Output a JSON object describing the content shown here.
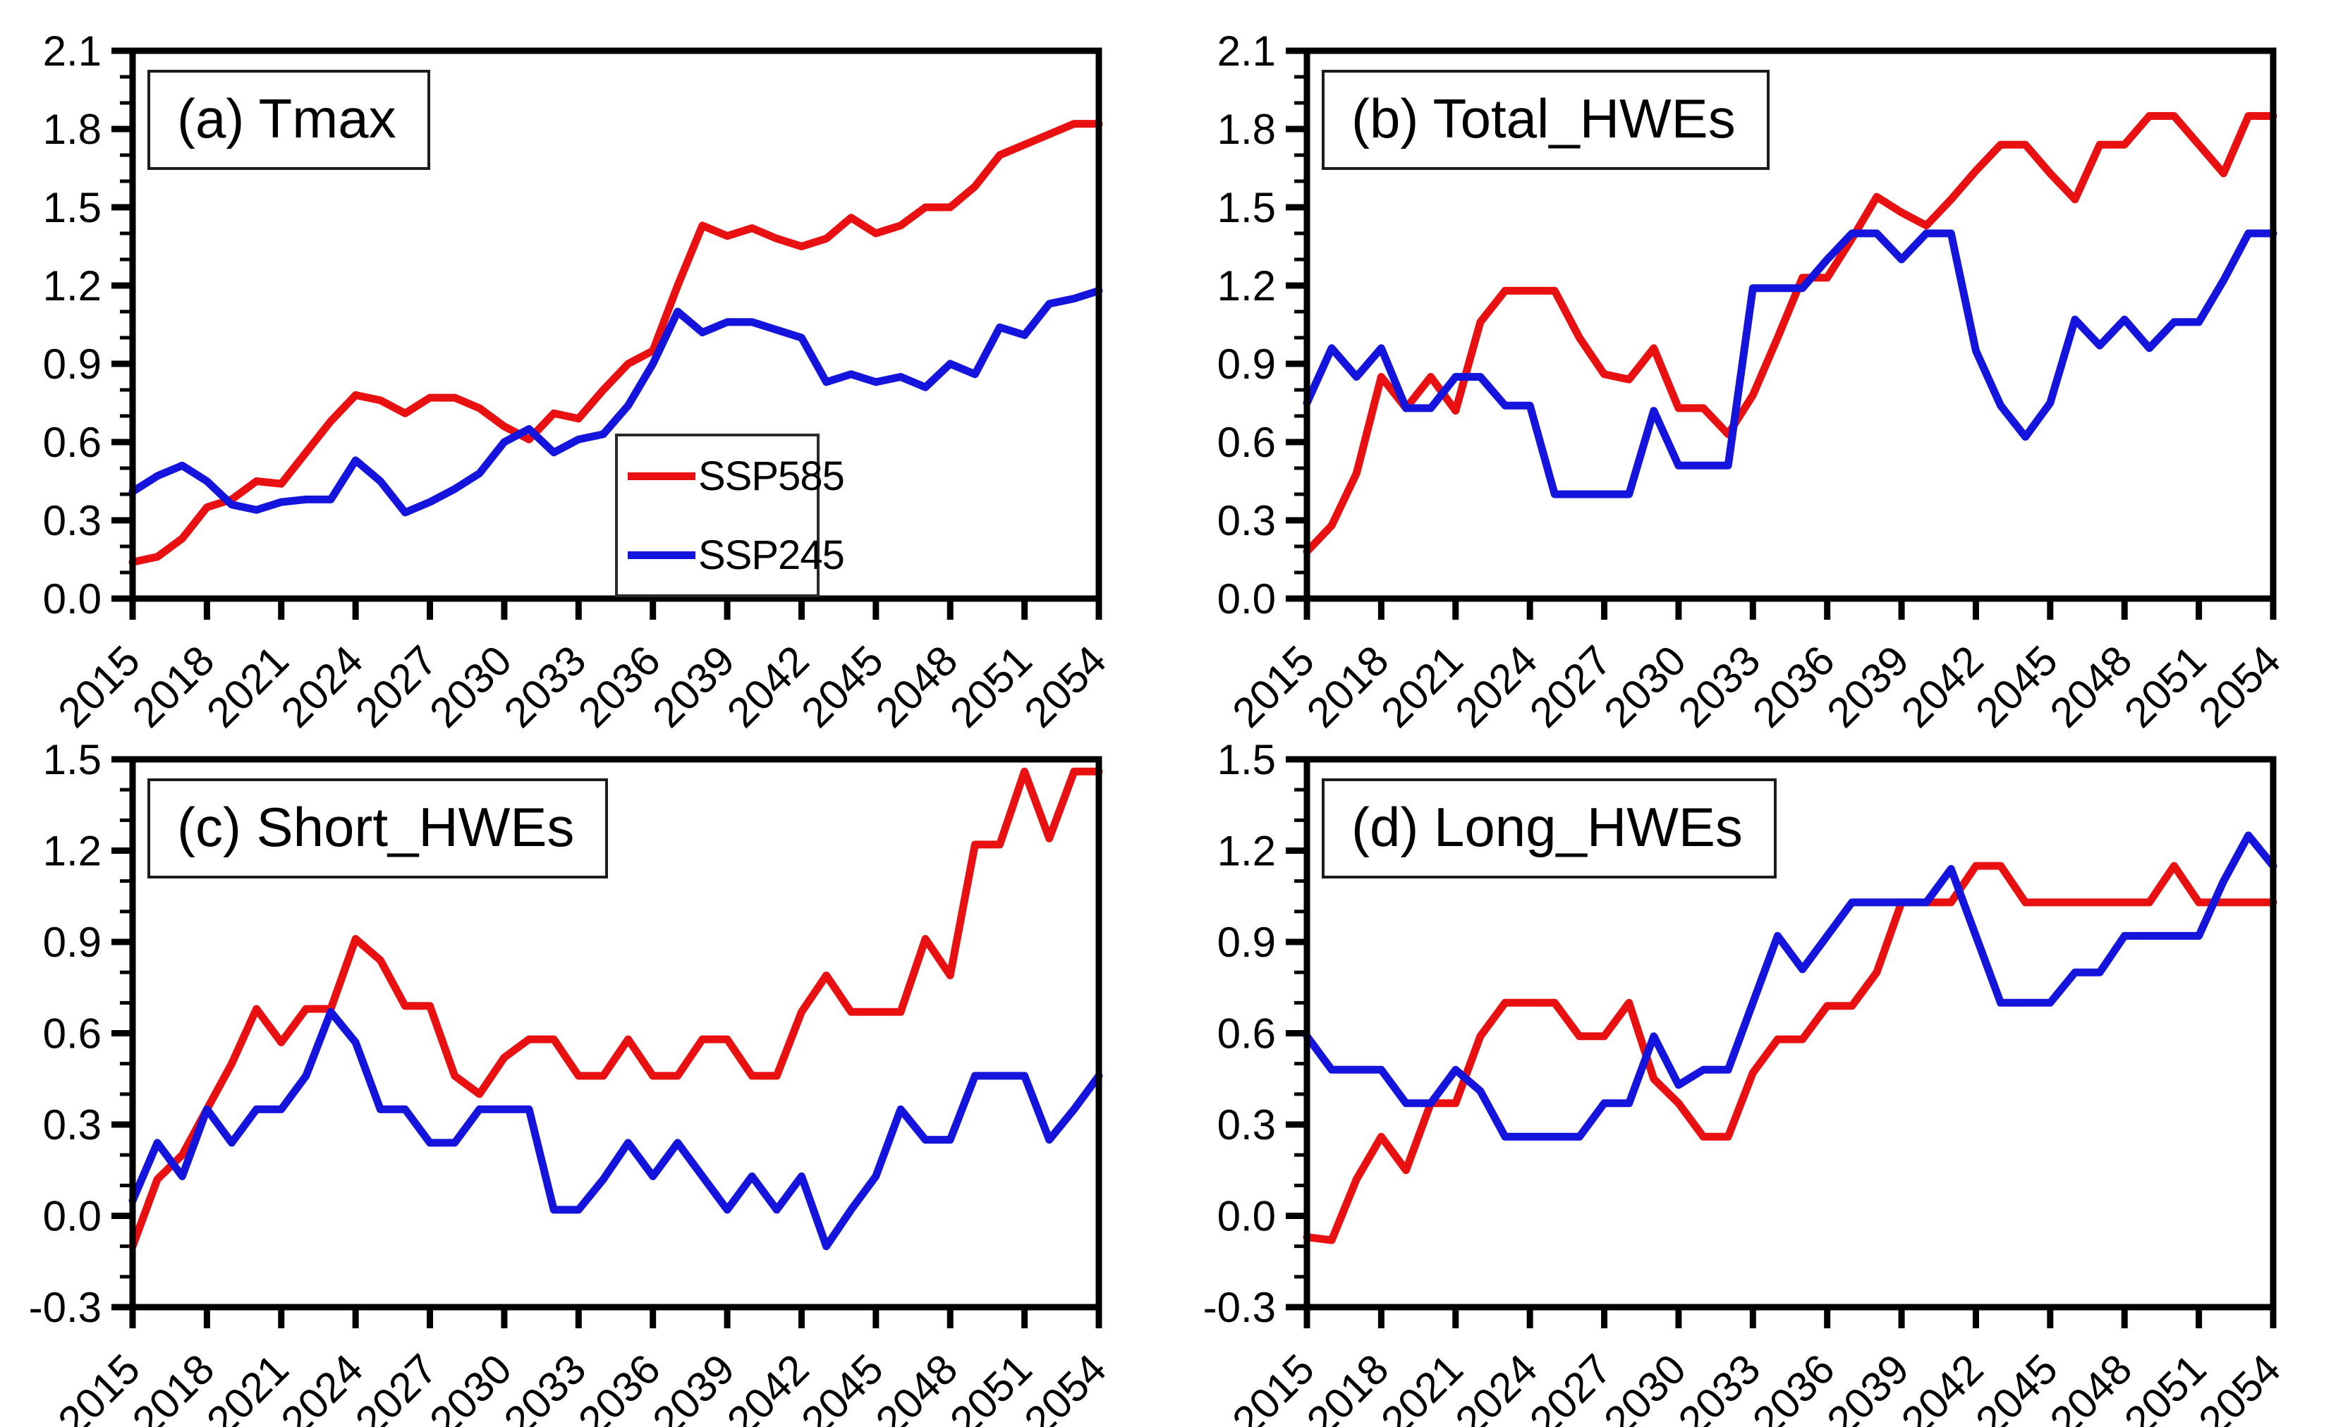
{
  "colors": {
    "ssp585": "#e81010",
    "ssp245": "#1414dd",
    "axis": "#000000",
    "background": "#ffffff"
  },
  "legend": {
    "items": [
      {
        "label": "SSP585",
        "color_key": "ssp585"
      },
      {
        "label": "SSP245",
        "color_key": "ssp245"
      }
    ]
  },
  "chart_data": {
    "type": "line",
    "grid": false,
    "legend_position": "inside panel (a), bottom center, box resting on x-axis",
    "x_axis": {
      "years": [
        2015,
        2016,
        2017,
        2018,
        2019,
        2020,
        2021,
        2022,
        2023,
        2024,
        2025,
        2026,
        2027,
        2028,
        2029,
        2030,
        2031,
        2032,
        2033,
        2034,
        2035,
        2036,
        2037,
        2038,
        2039,
        2040,
        2041,
        2042,
        2043,
        2044,
        2045,
        2046,
        2047,
        2048,
        2049,
        2050,
        2051,
        2052,
        2053,
        2054
      ],
      "tick_labels": [
        "2015",
        "2018",
        "2021",
        "2024",
        "2027",
        "2030",
        "2033",
        "2036",
        "2039",
        "2042",
        "2045",
        "2048",
        "2051",
        "2054"
      ],
      "tick_label_rotation_deg": -45
    },
    "panels": [
      {
        "id": "a",
        "title": "(a) Tmax",
        "ylim": [
          0.0,
          2.1
        ],
        "ytick_step": 0.3,
        "yminor_step": 0.1,
        "ytick_labels": [
          "0.0",
          "0.3",
          "0.6",
          "0.9",
          "1.2",
          "1.5",
          "1.8",
          "2.1"
        ],
        "series": [
          {
            "name": "SSP585",
            "color_key": "ssp585",
            "values": [
              0.14,
              0.16,
              0.23,
              0.35,
              0.38,
              0.45,
              0.44,
              0.56,
              0.68,
              0.78,
              0.76,
              0.71,
              0.77,
              0.77,
              0.73,
              0.66,
              0.61,
              0.71,
              0.69,
              0.8,
              0.9,
              0.95,
              1.2,
              1.43,
              1.39,
              1.42,
              1.38,
              1.35,
              1.38,
              1.46,
              1.4,
              1.43,
              1.5,
              1.5,
              1.58,
              1.7,
              1.74,
              1.78,
              1.82,
              1.82
            ]
          },
          {
            "name": "SSP245",
            "color_key": "ssp245",
            "values": [
              0.41,
              0.47,
              0.51,
              0.45,
              0.36,
              0.34,
              0.37,
              0.38,
              0.38,
              0.53,
              0.45,
              0.33,
              0.37,
              0.42,
              0.48,
              0.6,
              0.65,
              0.56,
              0.61,
              0.63,
              0.74,
              0.9,
              1.1,
              1.02,
              1.06,
              1.06,
              1.03,
              1.0,
              0.83,
              0.86,
              0.83,
              0.85,
              0.81,
              0.9,
              0.86,
              1.04,
              1.01,
              1.13,
              1.15,
              1.18
            ]
          }
        ]
      },
      {
        "id": "b",
        "title": "(b) Total_HWEs",
        "ylim": [
          0.0,
          2.1
        ],
        "ytick_step": 0.3,
        "yminor_step": 0.1,
        "ytick_labels": [
          "0.0",
          "0.3",
          "0.6",
          "0.9",
          "1.2",
          "1.5",
          "1.8",
          "2.1"
        ],
        "series": [
          {
            "name": "SSP585",
            "color_key": "ssp585",
            "values": [
              0.18,
              0.28,
              0.48,
              0.85,
              0.73,
              0.85,
              0.72,
              1.06,
              1.18,
              1.18,
              1.18,
              1.0,
              0.86,
              0.84,
              0.96,
              0.73,
              0.73,
              0.63,
              0.78,
              1.0,
              1.23,
              1.23,
              1.38,
              1.54,
              1.48,
              1.43,
              1.53,
              1.64,
              1.74,
              1.74,
              1.63,
              1.53,
              1.74,
              1.74,
              1.85,
              1.85,
              1.74,
              1.63,
              1.85,
              1.85
            ]
          },
          {
            "name": "SSP245",
            "color_key": "ssp245",
            "values": [
              0.75,
              0.96,
              0.85,
              0.96,
              0.73,
              0.73,
              0.85,
              0.85,
              0.74,
              0.74,
              0.4,
              0.4,
              0.4,
              0.4,
              0.72,
              0.51,
              0.51,
              0.51,
              1.19,
              1.19,
              1.19,
              1.3,
              1.4,
              1.4,
              1.3,
              1.4,
              1.4,
              0.95,
              0.74,
              0.62,
              0.75,
              1.07,
              0.97,
              1.07,
              0.96,
              1.06,
              1.06,
              1.22,
              1.4,
              1.4
            ]
          }
        ]
      },
      {
        "id": "c",
        "title": "(c) Short_HWEs",
        "ylim": [
          -0.3,
          1.5
        ],
        "ytick_step": 0.3,
        "yminor_step": 0.1,
        "ytick_labels": [
          "-0.3",
          "0.0",
          "0.3",
          "0.6",
          "0.9",
          "1.2",
          "1.5"
        ],
        "series": [
          {
            "name": "SSP585",
            "color_key": "ssp585",
            "values": [
              -0.1,
              0.12,
              0.2,
              0.35,
              0.5,
              0.68,
              0.57,
              0.68,
              0.68,
              0.91,
              0.84,
              0.69,
              0.69,
              0.46,
              0.4,
              0.52,
              0.58,
              0.58,
              0.46,
              0.46,
              0.58,
              0.46,
              0.46,
              0.58,
              0.58,
              0.46,
              0.46,
              0.67,
              0.79,
              0.67,
              0.67,
              0.67,
              0.91,
              0.79,
              1.22,
              1.22,
              1.46,
              1.24,
              1.46,
              1.46
            ]
          },
          {
            "name": "SSP245",
            "color_key": "ssp245",
            "values": [
              0.05,
              0.24,
              0.13,
              0.35,
              0.24,
              0.35,
              0.35,
              0.46,
              0.67,
              0.57,
              0.35,
              0.35,
              0.24,
              0.24,
              0.35,
              0.35,
              0.35,
              0.02,
              0.02,
              0.12,
              0.24,
              0.13,
              0.24,
              0.13,
              0.02,
              0.13,
              0.02,
              0.13,
              -0.1,
              0.02,
              0.13,
              0.35,
              0.25,
              0.25,
              0.46,
              0.46,
              0.46,
              0.25,
              0.35,
              0.46
            ]
          }
        ]
      },
      {
        "id": "d",
        "title": "(d) Long_HWEs",
        "ylim": [
          -0.3,
          1.5
        ],
        "ytick_step": 0.3,
        "yminor_step": 0.1,
        "ytick_labels": [
          "-0.3",
          "0.0",
          "0.3",
          "0.6",
          "0.9",
          "1.2",
          "1.5"
        ],
        "series": [
          {
            "name": "SSP585",
            "color_key": "ssp585",
            "values": [
              -0.07,
              -0.08,
              0.12,
              0.26,
              0.15,
              0.37,
              0.37,
              0.59,
              0.7,
              0.7,
              0.7,
              0.59,
              0.59,
              0.7,
              0.45,
              0.37,
              0.26,
              0.26,
              0.47,
              0.58,
              0.58,
              0.69,
              0.69,
              0.8,
              1.03,
              1.03,
              1.03,
              1.15,
              1.15,
              1.03,
              1.03,
              1.03,
              1.03,
              1.03,
              1.03,
              1.15,
              1.03,
              1.03,
              1.03,
              1.03
            ]
          },
          {
            "name": "SSP245",
            "color_key": "ssp245",
            "values": [
              0.59,
              0.48,
              0.48,
              0.48,
              0.37,
              0.37,
              0.48,
              0.41,
              0.26,
              0.26,
              0.26,
              0.26,
              0.37,
              0.37,
              0.59,
              0.43,
              0.48,
              0.48,
              0.7,
              0.92,
              0.81,
              0.92,
              1.03,
              1.03,
              1.03,
              1.03,
              1.14,
              0.92,
              0.7,
              0.7,
              0.7,
              0.8,
              0.8,
              0.92,
              0.92,
              0.92,
              0.92,
              1.1,
              1.25,
              1.15
            ]
          }
        ]
      }
    ]
  }
}
